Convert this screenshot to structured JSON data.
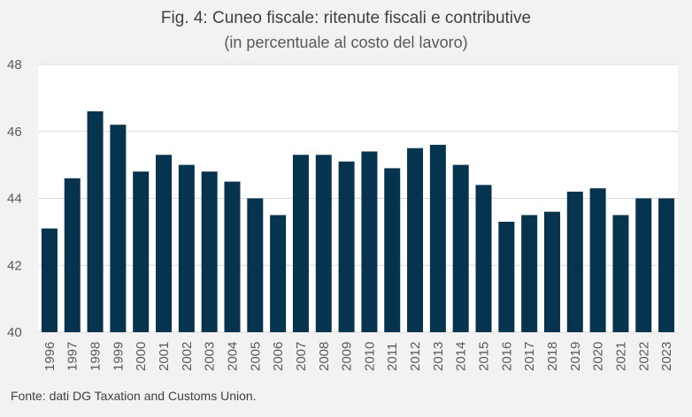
{
  "chart_data": {
    "type": "bar",
    "title": "Fig. 4: Cuneo fiscale: ritenute fiscali e contributive",
    "subtitle": "(in percentuale al costo del lavoro)",
    "xlabel": "",
    "ylabel": "",
    "ylim": [
      40,
      48
    ],
    "yticks": [
      "40",
      "42",
      "44",
      "46",
      "48"
    ],
    "grid": true,
    "bar_color": "#06334d",
    "categories": [
      "1996",
      "1997",
      "1998",
      "1999",
      "2000",
      "2001",
      "2002",
      "2003",
      "2004",
      "2005",
      "2006",
      "2007",
      "2008",
      "2009",
      "2010",
      "2011",
      "2012",
      "2013",
      "2014",
      "2015",
      "2016",
      "2017",
      "2018",
      "2019",
      "2020",
      "2021",
      "2022",
      "2023"
    ],
    "values": [
      43.1,
      44.6,
      46.6,
      46.2,
      44.8,
      45.3,
      45.0,
      44.8,
      44.5,
      44.0,
      43.5,
      45.3,
      45.3,
      45.1,
      45.4,
      44.9,
      45.5,
      45.6,
      45.0,
      44.4,
      43.3,
      43.5,
      43.6,
      44.2,
      44.3,
      43.5,
      44.0,
      44.0
    ],
    "source": "Fonte: dati DG Taxation and Customs Union."
  }
}
